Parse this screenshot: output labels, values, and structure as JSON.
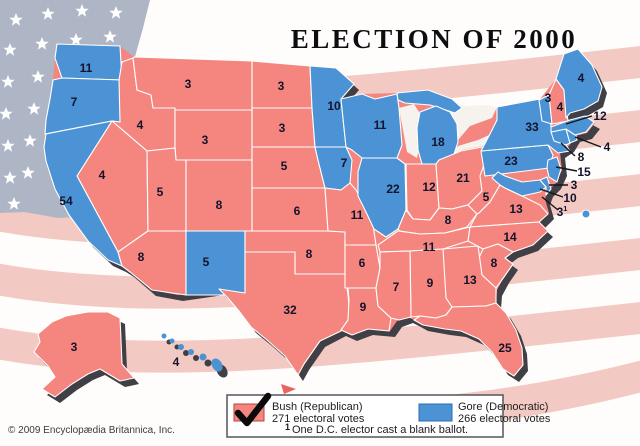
{
  "title": "ELECTION OF 2000",
  "copyright": "© 2009 Encyclopædia Britannica, Inc.",
  "colors": {
    "bush": "#f4867f",
    "gore": "#4b93d4",
    "shadow": "#413f46",
    "lake": "#f6f3ef",
    "label": "#13132b",
    "canton": "#aeb6c6",
    "stripe": "#f3cac3"
  },
  "legend": {
    "bush_label": "Bush (Republican)",
    "bush_votes": "271 electoral votes",
    "gore_label": "Gore (Democratic)",
    "gore_votes": "266 electoral votes",
    "footnote_marker": "1",
    "footnote": "One D.C. elector cast a blank ballot."
  },
  "states": [
    {
      "abbr": "WA",
      "name": "Washington",
      "votes": 11,
      "party": "gore"
    },
    {
      "abbr": "OR",
      "name": "Oregon",
      "votes": 7,
      "party": "gore"
    },
    {
      "abbr": "CA",
      "name": "California",
      "votes": 54,
      "party": "gore"
    },
    {
      "abbr": "NV",
      "name": "Nevada",
      "votes": 4,
      "party": "bush"
    },
    {
      "abbr": "ID",
      "name": "Idaho",
      "votes": 4,
      "party": "bush"
    },
    {
      "abbr": "MT",
      "name": "Montana",
      "votes": 3,
      "party": "bush"
    },
    {
      "abbr": "WY",
      "name": "Wyoming",
      "votes": 3,
      "party": "bush"
    },
    {
      "abbr": "UT",
      "name": "Utah",
      "votes": 5,
      "party": "bush"
    },
    {
      "abbr": "CO",
      "name": "Colorado",
      "votes": 8,
      "party": "bush"
    },
    {
      "abbr": "AZ",
      "name": "Arizona",
      "votes": 8,
      "party": "bush"
    },
    {
      "abbr": "NM",
      "name": "New Mexico",
      "votes": 5,
      "party": "gore"
    },
    {
      "abbr": "ND",
      "name": "North Dakota",
      "votes": 3,
      "party": "bush"
    },
    {
      "abbr": "SD",
      "name": "South Dakota",
      "votes": 3,
      "party": "bush"
    },
    {
      "abbr": "NE",
      "name": "Nebraska",
      "votes": 5,
      "party": "bush"
    },
    {
      "abbr": "KS",
      "name": "Kansas",
      "votes": 6,
      "party": "bush"
    },
    {
      "abbr": "OK",
      "name": "Oklahoma",
      "votes": 8,
      "party": "bush"
    },
    {
      "abbr": "TX",
      "name": "Texas",
      "votes": 32,
      "party": "bush"
    },
    {
      "abbr": "MN",
      "name": "Minnesota",
      "votes": 10,
      "party": "gore"
    },
    {
      "abbr": "IA",
      "name": "Iowa",
      "votes": 7,
      "party": "gore"
    },
    {
      "abbr": "MO",
      "name": "Missouri",
      "votes": 11,
      "party": "bush"
    },
    {
      "abbr": "AR",
      "name": "Arkansas",
      "votes": 6,
      "party": "bush"
    },
    {
      "abbr": "LA",
      "name": "Louisiana",
      "votes": 9,
      "party": "bush"
    },
    {
      "abbr": "WI",
      "name": "Wisconsin",
      "votes": 11,
      "party": "gore"
    },
    {
      "abbr": "IL",
      "name": "Illinois",
      "votes": 22,
      "party": "gore"
    },
    {
      "abbr": "MI",
      "name": "Michigan",
      "votes": 18,
      "party": "gore"
    },
    {
      "abbr": "IN",
      "name": "Indiana",
      "votes": 12,
      "party": "bush"
    },
    {
      "abbr": "OH",
      "name": "Ohio",
      "votes": 21,
      "party": "bush"
    },
    {
      "abbr": "KY",
      "name": "Kentucky",
      "votes": 8,
      "party": "bush"
    },
    {
      "abbr": "WV",
      "name": "West Virginia",
      "votes": 5,
      "party": "bush"
    },
    {
      "abbr": "VA",
      "name": "Virginia",
      "votes": 13,
      "party": "bush"
    },
    {
      "abbr": "TN",
      "name": "Tennessee",
      "votes": 11,
      "party": "bush"
    },
    {
      "abbr": "NC",
      "name": "North Carolina",
      "votes": 14,
      "party": "bush"
    },
    {
      "abbr": "SC",
      "name": "South Carolina",
      "votes": 8,
      "party": "bush"
    },
    {
      "abbr": "GA",
      "name": "Georgia",
      "votes": 13,
      "party": "bush"
    },
    {
      "abbr": "AL",
      "name": "Alabama",
      "votes": 9,
      "party": "bush"
    },
    {
      "abbr": "MS",
      "name": "Mississippi",
      "votes": 7,
      "party": "bush"
    },
    {
      "abbr": "FL",
      "name": "Florida",
      "votes": 25,
      "party": "bush"
    },
    {
      "abbr": "PA",
      "name": "Pennsylvania",
      "votes": 23,
      "party": "gore"
    },
    {
      "abbr": "NY",
      "name": "New York",
      "votes": 33,
      "party": "gore"
    },
    {
      "abbr": "VT",
      "name": "Vermont",
      "votes": 3,
      "party": "gore"
    },
    {
      "abbr": "NH",
      "name": "New Hampshire",
      "votes": 4,
      "party": "bush"
    },
    {
      "abbr": "ME",
      "name": "Maine",
      "votes": 4,
      "party": "gore"
    },
    {
      "abbr": "MA",
      "name": "Massachusetts",
      "votes": 12,
      "party": "gore"
    },
    {
      "abbr": "RI",
      "name": "Rhode Island",
      "votes": 4,
      "party": "gore"
    },
    {
      "abbr": "CT",
      "name": "Connecticut",
      "votes": 8,
      "party": "gore"
    },
    {
      "abbr": "NJ",
      "name": "New Jersey",
      "votes": 15,
      "party": "gore"
    },
    {
      "abbr": "DE",
      "name": "Delaware",
      "votes": 3,
      "party": "gore"
    },
    {
      "abbr": "MD",
      "name": "Maryland",
      "votes": 10,
      "party": "gore"
    },
    {
      "abbr": "DC",
      "name": "District of Columbia",
      "votes": 3,
      "party": "gore",
      "footnote_marker": "1"
    },
    {
      "abbr": "AK",
      "name": "Alaska",
      "votes": 3,
      "party": "bush"
    },
    {
      "abbr": "HI",
      "name": "Hawaii",
      "votes": 4,
      "party": "gore"
    }
  ]
}
